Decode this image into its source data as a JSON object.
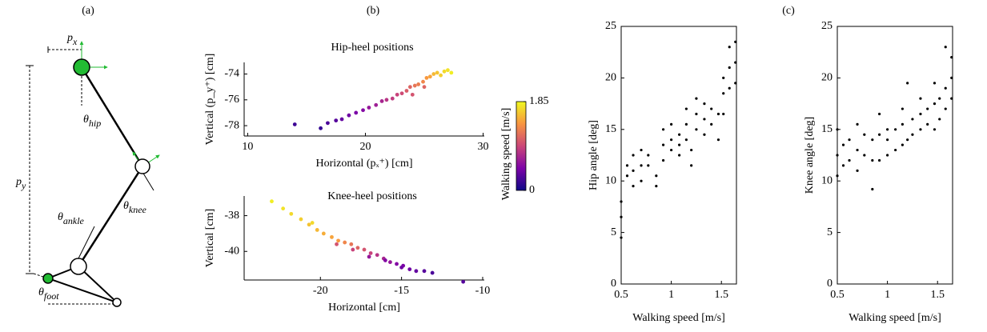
{
  "panel_labels": [
    "(a)",
    "(b)",
    "(c)"
  ],
  "diagram": {
    "labels": [
      {
        "symbol": "p",
        "sub": "x"
      },
      {
        "symbol": "p",
        "sub": "y"
      },
      {
        "symbol": "θ",
        "sub": "hip"
      },
      {
        "symbol": "θ",
        "sub": "knee"
      },
      {
        "symbol": "θ",
        "sub": "ankle"
      },
      {
        "symbol": "θ",
        "sub": "foot"
      }
    ]
  },
  "chart_data": [
    {
      "type": "scatter",
      "title": "Hip-heel positions",
      "xlabel": "Horizontal (pₓ⁺) [cm]",
      "ylabel": "Vertical (p_y⁺) [cm]",
      "x": [
        14.0,
        16.2,
        16.8,
        17.5,
        18.0,
        18.6,
        19.2,
        19.8,
        20.3,
        20.9,
        21.4,
        21.8,
        22.3,
        22.7,
        23.1,
        23.5,
        23.8,
        24.2,
        24.5,
        24.9,
        25.2,
        25.5,
        25.8,
        26.1,
        26.4,
        26.7,
        27.0,
        27.3,
        24.0,
        25.0
      ],
      "y": [
        -77.9,
        -78.2,
        -77.8,
        -77.6,
        -77.5,
        -77.2,
        -77.0,
        -76.8,
        -76.6,
        -76.4,
        -76.1,
        -76.0,
        -75.9,
        -75.6,
        -75.5,
        -75.3,
        -75.0,
        -74.9,
        -74.8,
        -74.6,
        -74.3,
        -74.2,
        -74.0,
        -73.9,
        -74.1,
        -73.8,
        -73.7,
        -73.9,
        -75.6,
        -75.0
      ],
      "c": [
        0.2,
        0.15,
        0.25,
        0.3,
        0.35,
        0.4,
        0.45,
        0.5,
        0.6,
        0.65,
        0.7,
        0.8,
        0.85,
        0.9,
        0.95,
        1.05,
        1.1,
        1.2,
        1.25,
        1.3,
        1.4,
        1.45,
        1.55,
        1.6,
        1.65,
        1.7,
        1.75,
        1.8,
        1.0,
        1.1
      ],
      "xlim": [
        9.7,
        30.1
      ],
      "ylim": [
        -78.8,
        -73.1
      ],
      "xticks": [
        10,
        20,
        30
      ],
      "yticks": [
        -78,
        -76,
        -74
      ],
      "colormap": [
        "#0d0887",
        "#7e03a8",
        "#cc4778",
        "#f89540",
        "#f0f921"
      ],
      "colorbar": {
        "label": "Walking speed [m/s]",
        "lim": [
          0,
          1.85
        ],
        "ticks": [
          0,
          1.85
        ]
      }
    },
    {
      "type": "scatter",
      "title": "Knee-heel positions",
      "xlabel": "Horizontal [cm]",
      "ylabel": "Vertical [cm]",
      "x": [
        -23.0,
        -22.3,
        -21.8,
        -21.2,
        -20.7,
        -20.2,
        -19.8,
        -19.3,
        -18.9,
        -18.5,
        -18.1,
        -17.7,
        -17.3,
        -16.9,
        -16.5,
        -16.1,
        -15.7,
        -15.3,
        -14.9,
        -14.5,
        -14.1,
        -13.6,
        -13.1,
        -11.2,
        -19.0,
        -17.0,
        -16.0,
        -15.0,
        -20.5,
        -18.0
      ],
      "y": [
        -37.2,
        -37.6,
        -37.9,
        -38.2,
        -38.5,
        -38.8,
        -39.0,
        -39.2,
        -39.4,
        -39.5,
        -39.6,
        -39.8,
        -39.9,
        -40.1,
        -40.2,
        -40.4,
        -40.6,
        -40.7,
        -40.8,
        -41.0,
        -41.1,
        -41.1,
        -41.2,
        -41.7,
        -39.6,
        -40.3,
        -40.5,
        -40.9,
        -38.4,
        -39.9
      ],
      "c": [
        1.8,
        1.75,
        1.7,
        1.65,
        1.6,
        1.55,
        1.5,
        1.45,
        1.4,
        1.3,
        1.2,
        1.1,
        1.0,
        0.9,
        0.8,
        0.7,
        0.6,
        0.5,
        0.45,
        0.4,
        0.35,
        0.3,
        0.25,
        0.3,
        1.0,
        0.6,
        0.5,
        0.4,
        1.7,
        0.9
      ],
      "xlim": [
        -24.7,
        -9.9
      ],
      "ylim": [
        -41.6,
        -36.9
      ],
      "xticks": [
        -20,
        -15,
        -10
      ],
      "yticks": [
        -40,
        -38
      ],
      "colormap": [
        "#0d0887",
        "#7e03a8",
        "#cc4778",
        "#f89540",
        "#f0f921"
      ]
    },
    {
      "type": "scatter",
      "xlabel": "Walking speed [m/s]",
      "ylabel": "Hip angle [deg]",
      "color": "#000000",
      "x": [
        0.5,
        0.5,
        0.5,
        0.56,
        0.56,
        0.62,
        0.62,
        0.62,
        0.7,
        0.7,
        0.7,
        0.77,
        0.77,
        0.85,
        0.85,
        0.92,
        0.92,
        0.92,
        1.0,
        1.0,
        1.0,
        1.08,
        1.08,
        1.08,
        1.15,
        1.15,
        1.15,
        1.2,
        1.2,
        1.25,
        1.25,
        1.25,
        1.33,
        1.33,
        1.33,
        1.4,
        1.4,
        1.47,
        1.47,
        1.52,
        1.52,
        1.52,
        1.58,
        1.58,
        1.58,
        1.64,
        1.64,
        1.64
      ],
      "y": [
        4.5,
        6.5,
        8.0,
        10.5,
        11.5,
        9.5,
        11.0,
        12.5,
        10.0,
        11.5,
        13.0,
        11.5,
        12.5,
        9.5,
        10.5,
        12.0,
        13.5,
        15.0,
        13.0,
        14.0,
        15.5,
        12.5,
        13.5,
        14.5,
        14.0,
        15.5,
        17.0,
        11.5,
        13.0,
        15.0,
        16.5,
        18.0,
        14.5,
        16.0,
        17.5,
        15.5,
        17.0,
        14.0,
        16.5,
        16.5,
        18.5,
        20.0,
        19.0,
        21.0,
        23.0,
        19.5,
        21.5,
        23.5
      ],
      "xlim": [
        0.5,
        1.65
      ],
      "ylim": [
        0,
        25
      ],
      "xticks": [
        0.5,
        1,
        1.5
      ],
      "yticks": [
        0,
        5,
        10,
        15,
        20,
        25
      ]
    },
    {
      "type": "scatter",
      "xlabel": "Walking speed [m/s]",
      "ylabel": "Knee angle [deg]",
      "color": "#000000",
      "x": [
        0.5,
        0.5,
        0.5,
        0.56,
        0.56,
        0.62,
        0.62,
        0.7,
        0.7,
        0.7,
        0.77,
        0.77,
        0.85,
        0.85,
        0.85,
        0.92,
        0.92,
        0.92,
        1.0,
        1.0,
        1.0,
        1.08,
        1.08,
        1.15,
        1.15,
        1.15,
        1.2,
        1.2,
        1.25,
        1.25,
        1.33,
        1.33,
        1.33,
        1.4,
        1.4,
        1.47,
        1.47,
        1.47,
        1.52,
        1.52,
        1.58,
        1.58,
        1.58,
        1.64,
        1.64,
        1.64
      ],
      "y": [
        10.5,
        12.5,
        15.0,
        11.5,
        13.5,
        12.0,
        14.0,
        11.0,
        13.0,
        15.5,
        12.5,
        14.5,
        9.2,
        12.0,
        14.0,
        12.0,
        14.5,
        16.5,
        12.5,
        14.0,
        15.0,
        13.0,
        15.0,
        13.5,
        15.5,
        17.0,
        14.0,
        19.5,
        14.5,
        16.0,
        15.0,
        16.5,
        18.0,
        15.5,
        17.0,
        15.0,
        17.5,
        19.5,
        16.0,
        18.0,
        17.0,
        19.0,
        23.0,
        18.0,
        20.0,
        22.0
      ],
      "xlim": [
        0.5,
        1.65
      ],
      "ylim": [
        0,
        25
      ],
      "xticks": [
        0.5,
        1,
        1.5
      ],
      "yticks": [
        0,
        5,
        10,
        15,
        20,
        25
      ]
    }
  ]
}
